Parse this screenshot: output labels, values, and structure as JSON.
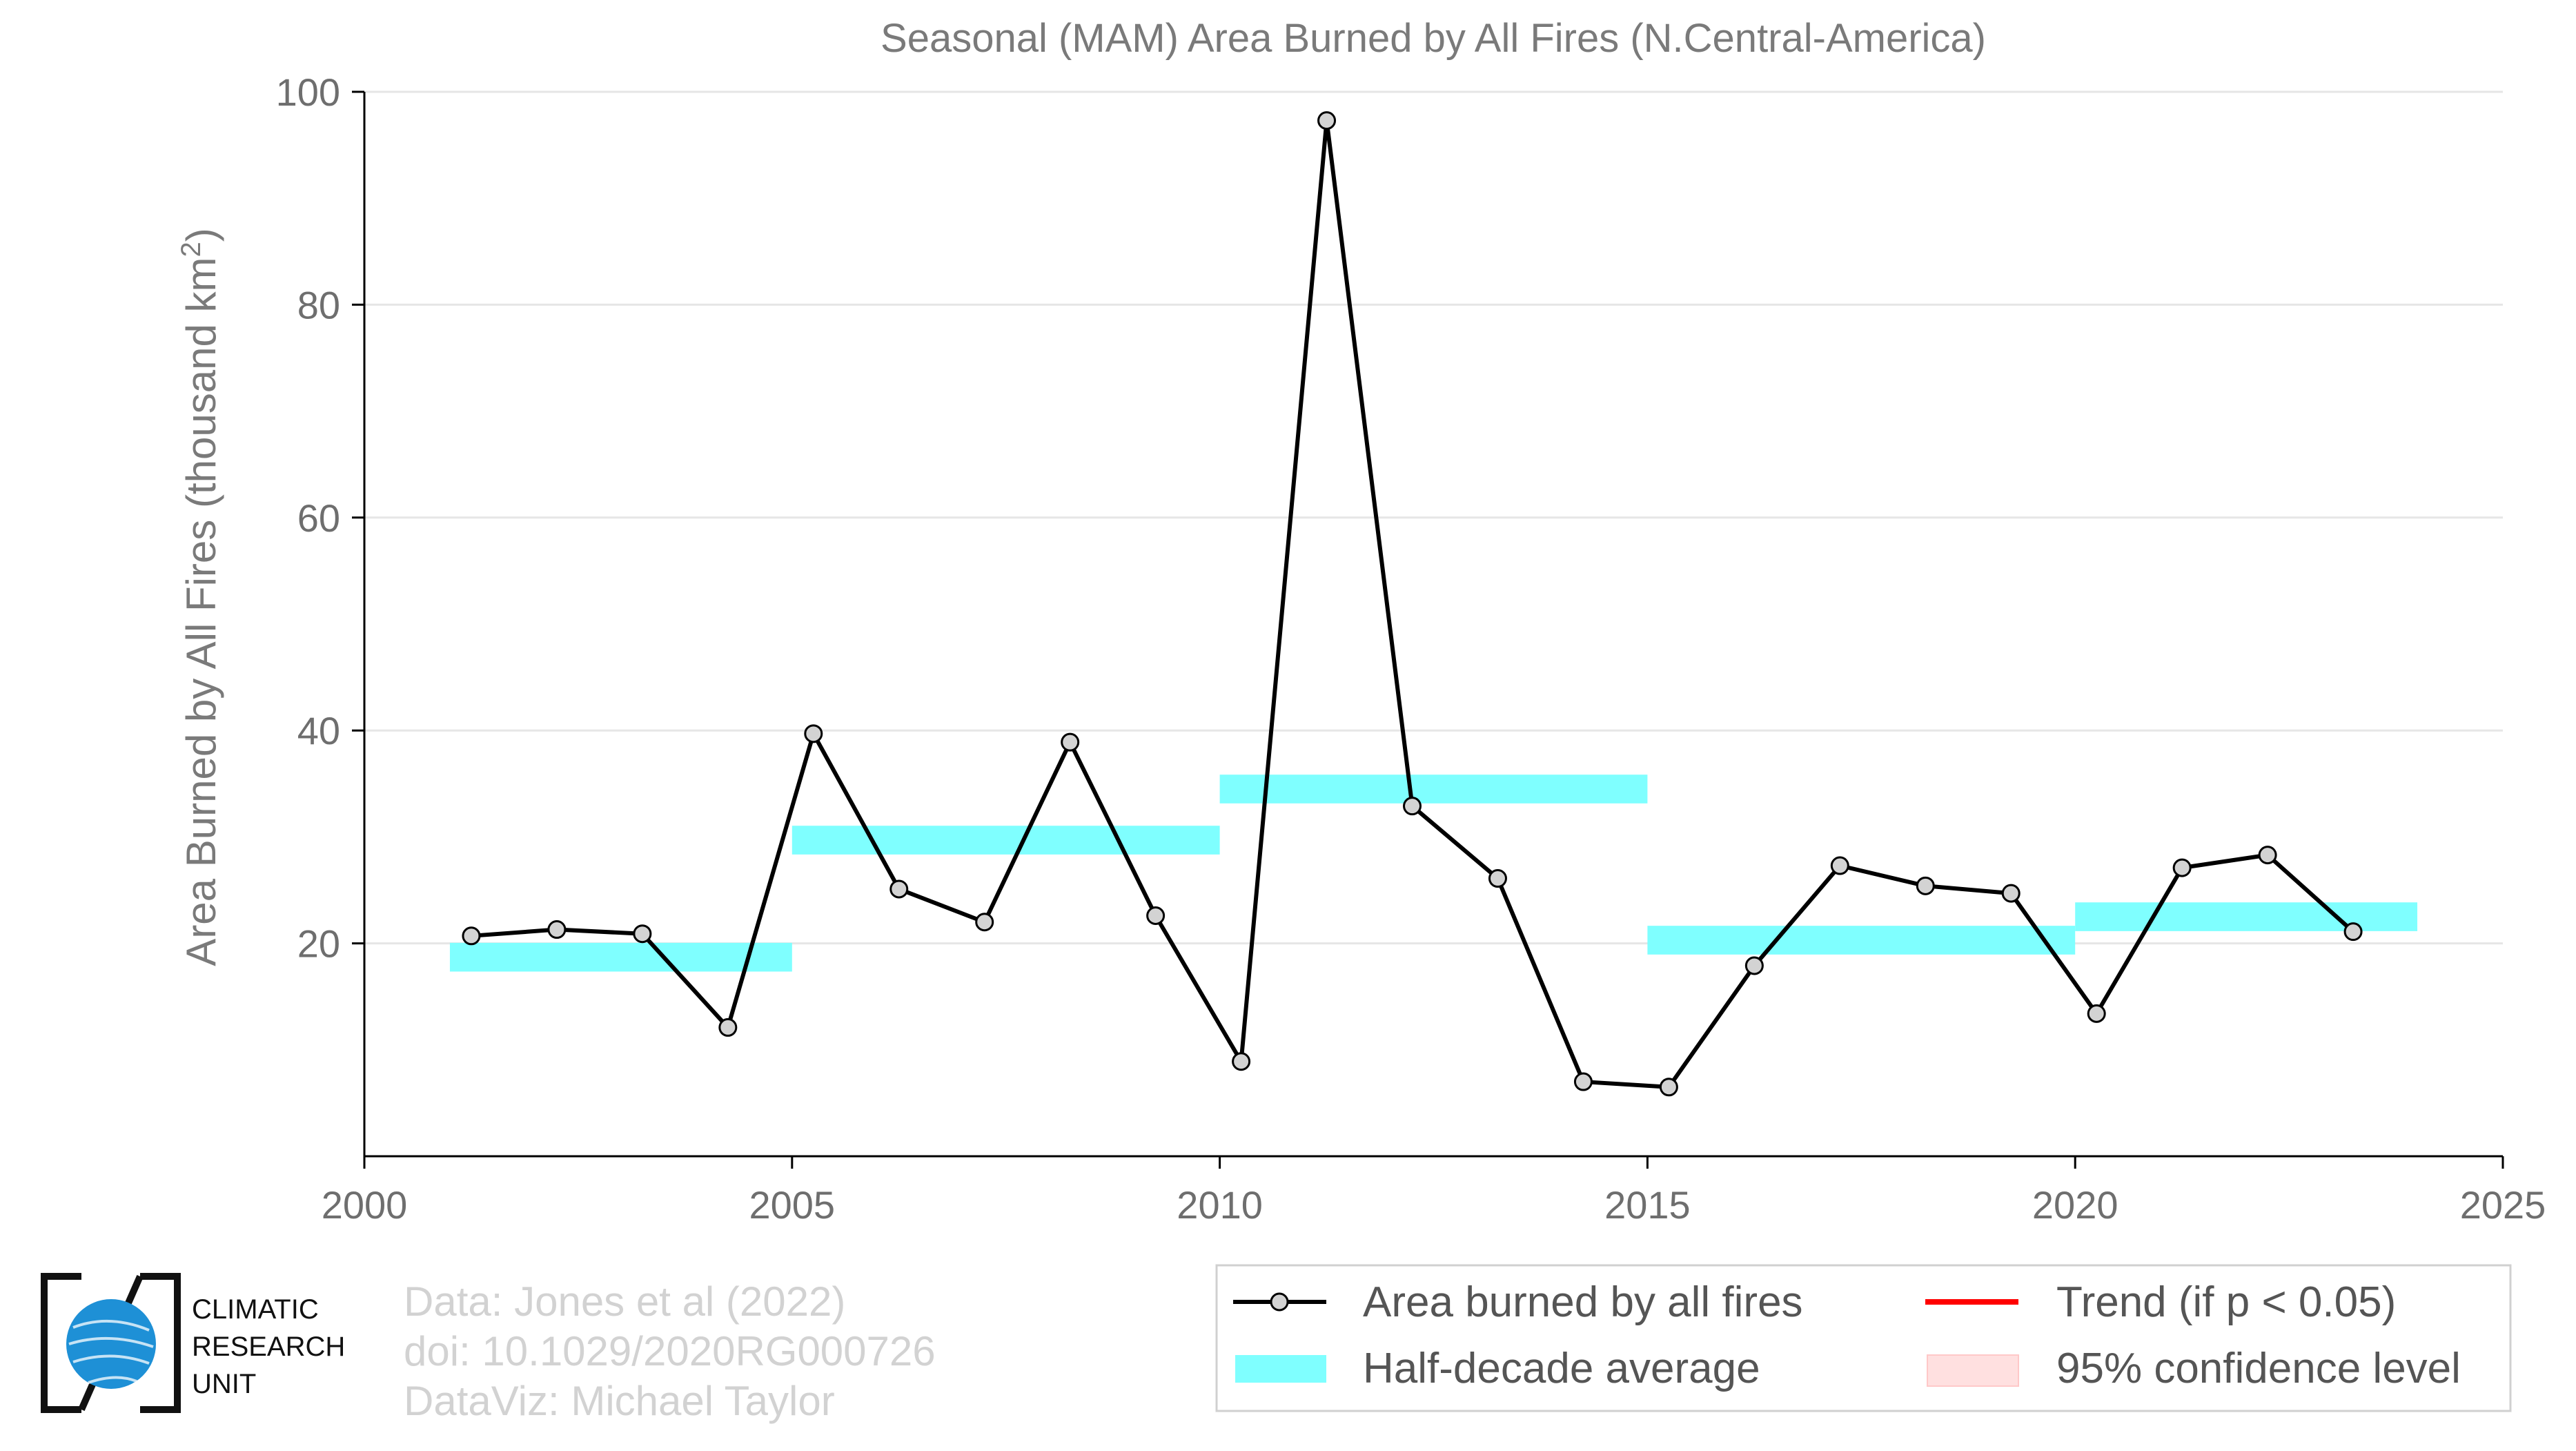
{
  "chart_data": {
    "type": "line",
    "title": "Seasonal (MAM) Area Burned by All Fires (N.Central-America)",
    "ylabel": "Area Burned by All Fires (thousand km",
    "ylabel_sup": "2",
    "ylabel_close": ")",
    "xlabel": "",
    "xlim": [
      2000,
      2025
    ],
    "ylim": [
      0,
      100
    ],
    "xticks": [
      "2000",
      "2005",
      "2010",
      "2015",
      "2020",
      "2025"
    ],
    "yticks": [
      "20",
      "40",
      "60",
      "80",
      "100"
    ],
    "grid": "horizontal",
    "legend_position": "bottom-right",
    "series": [
      {
        "name": "Area burned by all fires",
        "color": "#000000",
        "marker_fill": "#d3d3d3",
        "x": [
          2001.25,
          2002.25,
          2003.25,
          2004.25,
          2005.25,
          2006.25,
          2007.25,
          2008.25,
          2009.25,
          2010.25,
          2011.25,
          2012.25,
          2013.25,
          2014.25,
          2015.25,
          2016.25,
          2017.25,
          2018.25,
          2019.25,
          2020.25,
          2021.25,
          2022.25,
          2023.25
        ],
        "y": [
          20.7,
          21.3,
          20.9,
          12.1,
          39.7,
          25.1,
          22.0,
          38.9,
          22.6,
          8.9,
          97.3,
          32.9,
          26.1,
          7.0,
          6.5,
          17.9,
          27.3,
          25.4,
          24.7,
          13.4,
          27.1,
          28.3,
          21.1
        ]
      }
    ],
    "half_decade_average": {
      "name": "Half-decade average",
      "color": "#7fffff",
      "segments": [
        {
          "x_start": 2001,
          "x_end": 2005,
          "y": 18.7
        },
        {
          "x_start": 2005,
          "x_end": 2010,
          "y": 29.7
        },
        {
          "x_start": 2010,
          "x_end": 2015,
          "y": 34.5
        },
        {
          "x_start": 2015,
          "x_end": 2020,
          "y": 20.3
        },
        {
          "x_start": 2020,
          "x_end": 2024,
          "y": 22.5
        }
      ]
    },
    "legend": [
      {
        "label": "Area burned by all fires",
        "kind": "line-marker",
        "color": "#000000"
      },
      {
        "label": "Trend (if p < 0.05)",
        "kind": "line",
        "color": "#ff0000"
      },
      {
        "label": "Half-decade average",
        "kind": "band",
        "color": "#7fffff"
      },
      {
        "label": "95% confidence level",
        "kind": "band",
        "color": "#ffe0e0"
      }
    ]
  },
  "credits": [
    "Data: Jones et al (2022)",
    "doi: 10.1029/2020RG000726",
    "DataViz: Michael Taylor"
  ],
  "logo": {
    "lines": [
      "CLIMATIC",
      "RESEARCH",
      "UNIT"
    ],
    "color": "#1e90d6"
  }
}
